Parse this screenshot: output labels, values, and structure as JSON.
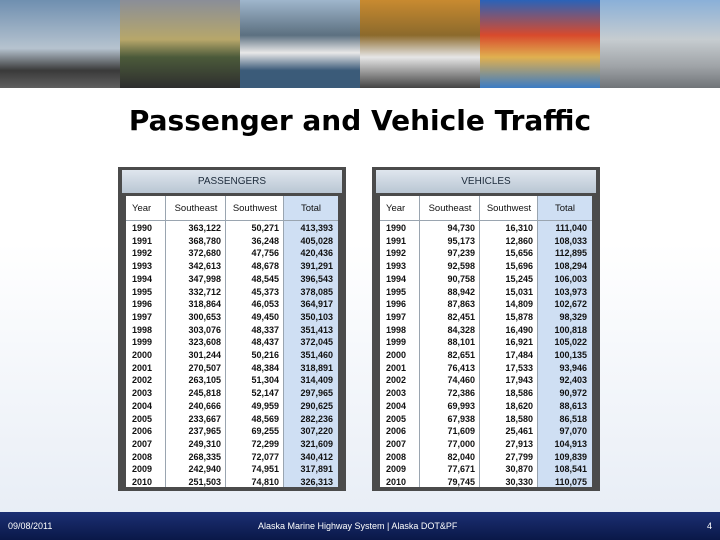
{
  "header": {
    "title": "Passenger and Vehicle Traffic"
  },
  "tables": [
    {
      "title": "PASSENGERS",
      "columns": [
        "Year",
        "Southeast",
        "Southwest",
        "Total"
      ],
      "rows": [
        [
          "1990",
          "363,122",
          "50,271",
          "413,393"
        ],
        [
          "1991",
          "368,780",
          "36,248",
          "405,028"
        ],
        [
          "1992",
          "372,680",
          "47,756",
          "420,436"
        ],
        [
          "1993",
          "342,613",
          "48,678",
          "391,291"
        ],
        [
          "1994",
          "347,998",
          "48,545",
          "396,543"
        ],
        [
          "1995",
          "332,712",
          "45,373",
          "378,085"
        ],
        [
          "1996",
          "318,864",
          "46,053",
          "364,917"
        ],
        [
          "1997",
          "300,653",
          "49,450",
          "350,103"
        ],
        [
          "1998",
          "303,076",
          "48,337",
          "351,413"
        ],
        [
          "1999",
          "323,608",
          "48,437",
          "372,045"
        ],
        [
          "2000",
          "301,244",
          "50,216",
          "351,460"
        ],
        [
          "2001",
          "270,507",
          "48,384",
          "318,891"
        ],
        [
          "2002",
          "263,105",
          "51,304",
          "314,409"
        ],
        [
          "2003",
          "245,818",
          "52,147",
          "297,965"
        ],
        [
          "2004",
          "240,666",
          "49,959",
          "290,625"
        ],
        [
          "2005",
          "233,667",
          "48,569",
          "282,236"
        ],
        [
          "2006",
          "237,965",
          "69,255",
          "307,220"
        ],
        [
          "2007",
          "249,310",
          "72,299",
          "321,609"
        ],
        [
          "2008",
          "268,335",
          "72,077",
          "340,412"
        ],
        [
          "2009",
          "242,940",
          "74,951",
          "317,891"
        ],
        [
          "2010",
          "251,503",
          "74,810",
          "326,313"
        ]
      ]
    },
    {
      "title": "VEHICLES",
      "columns": [
        "Year",
        "Southeast",
        "Southwest",
        "Total"
      ],
      "rows": [
        [
          "1990",
          "94,730",
          "16,310",
          "111,040"
        ],
        [
          "1991",
          "95,173",
          "12,860",
          "108,033"
        ],
        [
          "1992",
          "97,239",
          "15,656",
          "112,895"
        ],
        [
          "1993",
          "92,598",
          "15,696",
          "108,294"
        ],
        [
          "1994",
          "90,758",
          "15,245",
          "106,003"
        ],
        [
          "1995",
          "88,942",
          "15,031",
          "103,973"
        ],
        [
          "1996",
          "87,863",
          "14,809",
          "102,672"
        ],
        [
          "1997",
          "82,451",
          "15,878",
          "98,329"
        ],
        [
          "1998",
          "84,328",
          "16,490",
          "100,818"
        ],
        [
          "1999",
          "88,101",
          "16,921",
          "105,022"
        ],
        [
          "2000",
          "82,651",
          "17,484",
          "100,135"
        ],
        [
          "2001",
          "76,413",
          "17,533",
          "93,946"
        ],
        [
          "2002",
          "74,460",
          "17,943",
          "92,403"
        ],
        [
          "2003",
          "72,386",
          "18,586",
          "90,972"
        ],
        [
          "2004",
          "69,993",
          "18,620",
          "88,613"
        ],
        [
          "2005",
          "67,938",
          "18,580",
          "86,518"
        ],
        [
          "2006",
          "71,609",
          "25,461",
          "97,070"
        ],
        [
          "2007",
          "77,000",
          "27,913",
          "104,913"
        ],
        [
          "2008",
          "82,040",
          "27,799",
          "109,839"
        ],
        [
          "2009",
          "77,671",
          "30,870",
          "108,541"
        ],
        [
          "2010",
          "79,745",
          "30,330",
          "110,075"
        ]
      ]
    }
  ],
  "footer": {
    "date": "09/08/2011",
    "center": "Alaska Marine Highway System | Alaska DOT&PF",
    "page": "4"
  }
}
